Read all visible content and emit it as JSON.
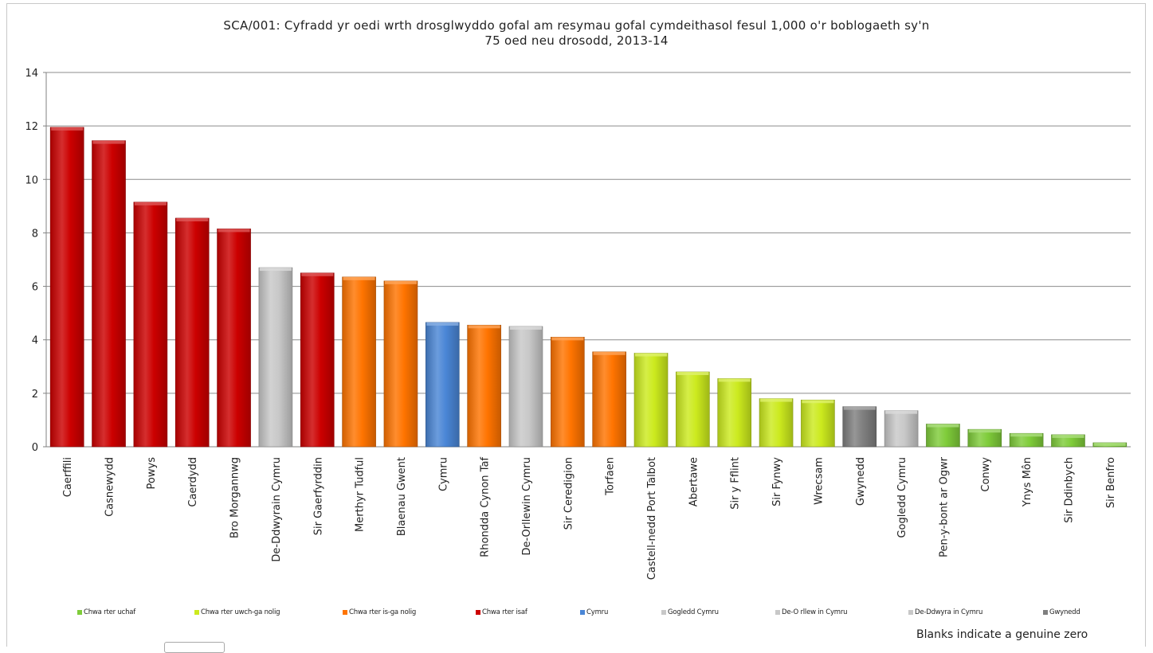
{
  "chart_data": {
    "type": "bar",
    "title_lines": [
      "SCA/001: Cyfradd yr oedi wrth drosglwyddo gofal am resymau gofal cymdeithasol fesul 1,000 o'r boblogaeth sy'n",
      "75 oed neu drosodd, 2013-14"
    ],
    "xlabel": "",
    "ylabel": "",
    "ylim": [
      0,
      14
    ],
    "yticks": [
      "0",
      "2",
      "4",
      "6",
      "8",
      "10",
      "12",
      "14"
    ],
    "grid": true,
    "legend_position": "bottom",
    "categories": [
      "Caerffili",
      "Casnewydd",
      "Powys",
      "Caerdydd",
      "Bro Morgannwg",
      "De-Ddwyrain Cymru",
      "Sir Gaerfyrddin",
      "Merthyr Tudful",
      "Blaenau Gwent",
      "Cymru",
      "Rhondda Cynon Taf",
      "De-Orllewin Cymru",
      "Sir Ceredigion",
      "Torfaen",
      "Castell-nedd Port Talbot",
      "Abertawe",
      "Sir y Fflint",
      "Sir Fynwy",
      "Wrecsam",
      "Gwynedd",
      "Gogledd Cymru",
      "Pen-y-bont ar Ogwr",
      "Conwy",
      "Ynys Môn",
      "Sir Ddinbych",
      "Sir Benfro"
    ],
    "values": [
      11.95,
      11.45,
      9.15,
      8.55,
      8.15,
      6.7,
      6.5,
      6.35,
      6.2,
      4.65,
      4.55,
      4.5,
      4.1,
      3.55,
      3.5,
      2.8,
      2.55,
      1.8,
      1.75,
      1.5,
      1.35,
      0.85,
      0.65,
      0.5,
      0.45,
      0.15
    ],
    "bar_groups": [
      "q4",
      "q4",
      "q4",
      "q4",
      "q4",
      "se",
      "q4",
      "q3",
      "q3",
      "wales",
      "q3",
      "sw",
      "q3",
      "q3",
      "q2",
      "q2",
      "q2",
      "q2",
      "q2",
      "gwynedd",
      "nw",
      "q1",
      "q1",
      "q1",
      "q1",
      "q1"
    ],
    "colors": {
      "q1": "#7fcc3a",
      "q2": "#ccea1e",
      "q3": "#ff7400",
      "q4": "#cc0000",
      "wales": "#4a86d6",
      "nw": "#c8c8c8",
      "sw": "#c8c8c8",
      "se": "#c8c8c8",
      "gwynedd": "#7f7f7f"
    },
    "legend": [
      {
        "key": "q1",
        "label": "Chwa rter uchaf"
      },
      {
        "key": "q2",
        "label": "Chwa rter uwch-ga nolig"
      },
      {
        "key": "q3",
        "label": "Chwa rter is-ga nolig"
      },
      {
        "key": "q4",
        "label": "Chwa rter isaf"
      },
      {
        "key": "wales",
        "label": "Cymru"
      },
      {
        "key": "nw",
        "label": "Gogledd Cymru"
      },
      {
        "key": "sw",
        "label": "De-O rllew in Cymru"
      },
      {
        "key": "se",
        "label": "De-Ddwyra in Cymru"
      },
      {
        "key": "gwynedd",
        "label": "Gwynedd"
      }
    ]
  },
  "note": "Blanks indicate a genuine zero"
}
